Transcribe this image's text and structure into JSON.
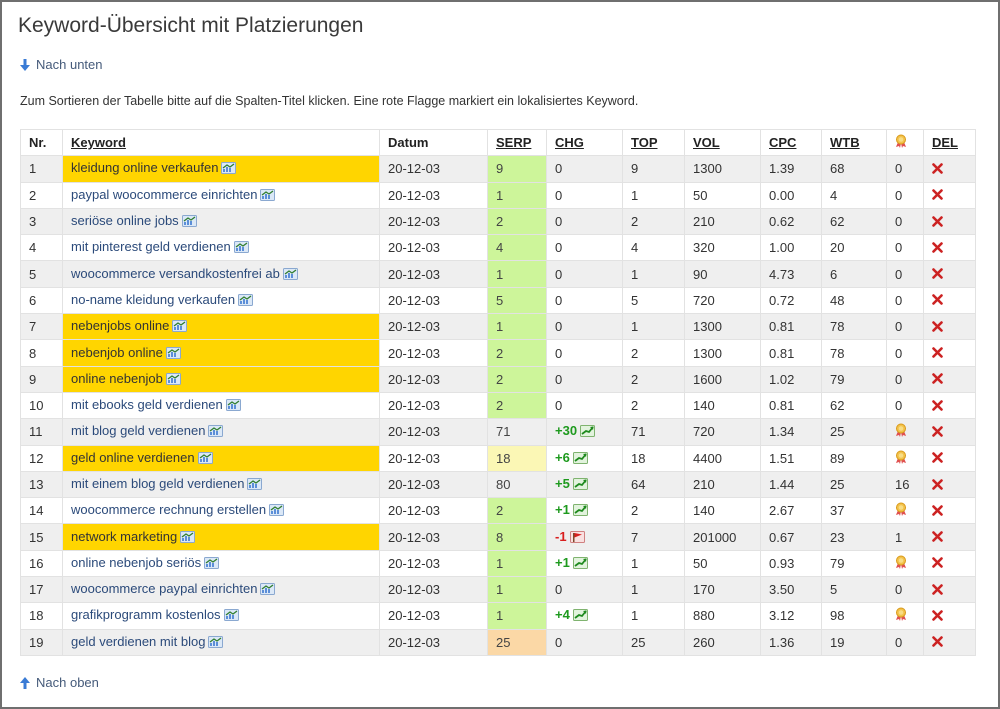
{
  "page": {
    "title": "Keyword-Übersicht mit Platzierungen",
    "nav_down": "Nach unten",
    "nav_up": "Nach oben",
    "hint": "Zum Sortieren der Tabelle bitte auf die Spalten-Titel klicken. Eine rote Flagge markiert ein lokalisiertes Keyword."
  },
  "colors": {
    "highlight_keyword": "#ffd500",
    "serp_green": "#cdf59a",
    "serp_lightyellow": "#fbf7b5",
    "serp_peach": "#fbd8a6",
    "chg_positive": "#1e9a1e",
    "chg_negative": "#d81e1e",
    "delete_icon": "#cc2222"
  },
  "table": {
    "headers": {
      "nr": "Nr.",
      "keyword": "Keyword",
      "date": "Datum",
      "serp": "SERP",
      "chg": "CHG",
      "top": "TOP",
      "vol": "VOL",
      "cpc": "CPC",
      "wtb": "WTB",
      "award_icon": "award-icon",
      "del": "DEL"
    },
    "rows": [
      {
        "nr": "1",
        "keyword": "kleidung online verkaufen",
        "highlight": true,
        "date": "20-12-03",
        "serp": "9",
        "serp_color": "green",
        "chg": "0",
        "chg_dir": "none",
        "top": "9",
        "vol": "1300",
        "cpc": "1.39",
        "wtb": "68",
        "award": "0"
      },
      {
        "nr": "2",
        "keyword": "paypal woocommerce einrichten",
        "highlight": false,
        "date": "20-12-03",
        "serp": "1",
        "serp_color": "green",
        "chg": "0",
        "chg_dir": "none",
        "top": "1",
        "vol": "50",
        "cpc": "0.00",
        "wtb": "4",
        "award": "0"
      },
      {
        "nr": "3",
        "keyword": "seriöse online jobs",
        "highlight": false,
        "date": "20-12-03",
        "serp": "2",
        "serp_color": "green",
        "chg": "0",
        "chg_dir": "none",
        "top": "2",
        "vol": "210",
        "cpc": "0.62",
        "wtb": "62",
        "award": "0"
      },
      {
        "nr": "4",
        "keyword": "mit pinterest geld verdienen",
        "highlight": false,
        "date": "20-12-03",
        "serp": "4",
        "serp_color": "green",
        "chg": "0",
        "chg_dir": "none",
        "top": "4",
        "vol": "320",
        "cpc": "1.00",
        "wtb": "20",
        "award": "0"
      },
      {
        "nr": "5",
        "keyword": "woocommerce versandkostenfrei ab",
        "highlight": false,
        "date": "20-12-03",
        "serp": "1",
        "serp_color": "green",
        "chg": "0",
        "chg_dir": "none",
        "top": "1",
        "vol": "90",
        "cpc": "4.73",
        "wtb": "6",
        "award": "0"
      },
      {
        "nr": "6",
        "keyword": "no-name kleidung verkaufen",
        "highlight": false,
        "date": "20-12-03",
        "serp": "5",
        "serp_color": "green",
        "chg": "0",
        "chg_dir": "none",
        "top": "5",
        "vol": "720",
        "cpc": "0.72",
        "wtb": "48",
        "award": "0"
      },
      {
        "nr": "7",
        "keyword": "nebenjobs online",
        "highlight": true,
        "date": "20-12-03",
        "serp": "1",
        "serp_color": "green",
        "chg": "0",
        "chg_dir": "none",
        "top": "1",
        "vol": "1300",
        "cpc": "0.81",
        "wtb": "78",
        "award": "0"
      },
      {
        "nr": "8",
        "keyword": "nebenjob online",
        "highlight": true,
        "date": "20-12-03",
        "serp": "2",
        "serp_color": "green",
        "chg": "0",
        "chg_dir": "none",
        "top": "2",
        "vol": "1300",
        "cpc": "0.81",
        "wtb": "78",
        "award": "0"
      },
      {
        "nr": "9",
        "keyword": "online nebenjob",
        "highlight": true,
        "date": "20-12-03",
        "serp": "2",
        "serp_color": "green",
        "chg": "0",
        "chg_dir": "none",
        "top": "2",
        "vol": "1600",
        "cpc": "1.02",
        "wtb": "79",
        "award": "0"
      },
      {
        "nr": "10",
        "keyword": "mit ebooks geld verdienen",
        "highlight": false,
        "date": "20-12-03",
        "serp": "2",
        "serp_color": "green",
        "chg": "0",
        "chg_dir": "none",
        "top": "2",
        "vol": "140",
        "cpc": "0.81",
        "wtb": "62",
        "award": "0"
      },
      {
        "nr": "11",
        "keyword": "mit blog geld verdienen",
        "highlight": false,
        "date": "20-12-03",
        "serp": "71",
        "serp_color": "none",
        "chg": "+30",
        "chg_dir": "up",
        "top": "71",
        "vol": "720",
        "cpc": "1.34",
        "wtb": "25",
        "award": "award-icon"
      },
      {
        "nr": "12",
        "keyword": "geld online verdienen",
        "highlight": true,
        "date": "20-12-03",
        "serp": "18",
        "serp_color": "lightyellow",
        "chg": "+6",
        "chg_dir": "up",
        "top": "18",
        "vol": "4400",
        "cpc": "1.51",
        "wtb": "89",
        "award": "award-icon"
      },
      {
        "nr": "13",
        "keyword": "mit einem blog geld verdienen",
        "highlight": false,
        "date": "20-12-03",
        "serp": "80",
        "serp_color": "none",
        "chg": "+5",
        "chg_dir": "up",
        "top": "64",
        "vol": "210",
        "cpc": "1.44",
        "wtb": "25",
        "award": "16"
      },
      {
        "nr": "14",
        "keyword": "woocommerce rechnung erstellen",
        "highlight": false,
        "date": "20-12-03",
        "serp": "2",
        "serp_color": "green",
        "chg": "+1",
        "chg_dir": "up",
        "top": "2",
        "vol": "140",
        "cpc": "2.67",
        "wtb": "37",
        "award": "award-icon"
      },
      {
        "nr": "15",
        "keyword": "network marketing",
        "highlight": true,
        "date": "20-12-03",
        "serp": "8",
        "serp_color": "green",
        "chg": "-1",
        "chg_dir": "down",
        "top": "7",
        "vol": "201000",
        "cpc": "0.67",
        "wtb": "23",
        "award": "1"
      },
      {
        "nr": "16",
        "keyword": "online nebenjob seriös",
        "highlight": false,
        "date": "20-12-03",
        "serp": "1",
        "serp_color": "green",
        "chg": "+1",
        "chg_dir": "up",
        "top": "1",
        "vol": "50",
        "cpc": "0.93",
        "wtb": "79",
        "award": "award-icon"
      },
      {
        "nr": "17",
        "keyword": "woocommerce paypal einrichten",
        "highlight": false,
        "date": "20-12-03",
        "serp": "1",
        "serp_color": "green",
        "chg": "0",
        "chg_dir": "none",
        "top": "1",
        "vol": "170",
        "cpc": "3.50",
        "wtb": "5",
        "award": "0"
      },
      {
        "nr": "18",
        "keyword": "grafikprogramm kostenlos",
        "highlight": false,
        "date": "20-12-03",
        "serp": "1",
        "serp_color": "green",
        "chg": "+4",
        "chg_dir": "up",
        "top": "1",
        "vol": "880",
        "cpc": "3.12",
        "wtb": "98",
        "award": "award-icon"
      },
      {
        "nr": "19",
        "keyword": "geld verdienen mit blog",
        "highlight": false,
        "date": "20-12-03",
        "serp": "25",
        "serp_color": "peach",
        "chg": "0",
        "chg_dir": "none",
        "top": "25",
        "vol": "260",
        "cpc": "1.36",
        "wtb": "19",
        "award": "0"
      }
    ]
  }
}
